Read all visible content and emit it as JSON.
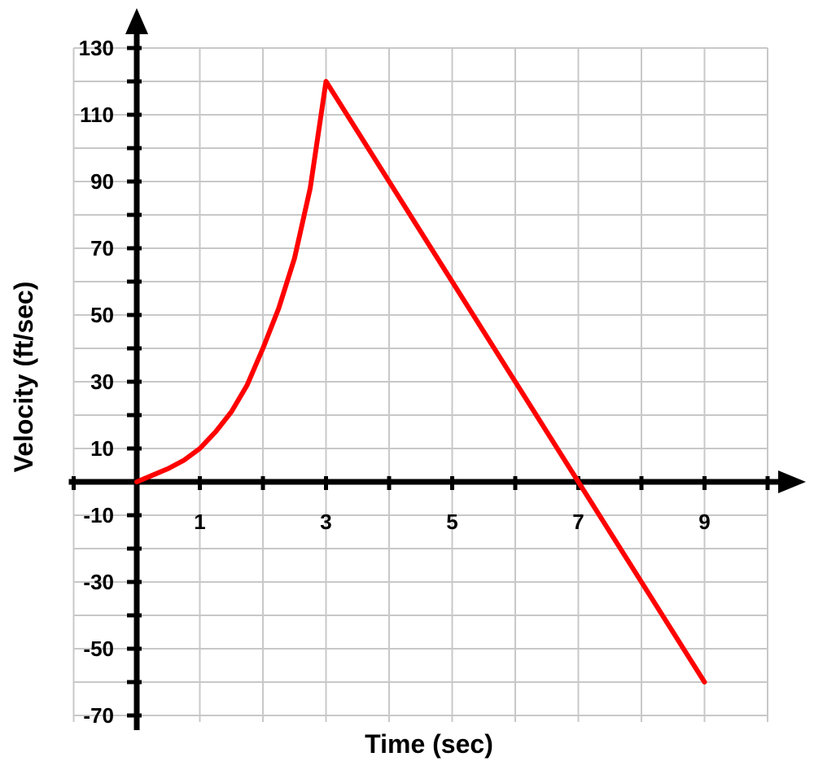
{
  "chart_data": {
    "type": "line",
    "title": "",
    "xlabel": "Time (sec)",
    "ylabel": "Velocity (ft/sec)",
    "xlim": [
      -1,
      10
    ],
    "ylim": [
      -70,
      130
    ],
    "x_ticks": [
      1,
      3,
      5,
      7,
      9
    ],
    "y_ticks": [
      130,
      110,
      90,
      70,
      50,
      30,
      10,
      -10,
      -30,
      -50,
      -70
    ],
    "grid": true,
    "grid_step_x": 1,
    "grid_step_y": 10,
    "series": [
      {
        "color": "#ff0000",
        "x": [
          0,
          0.25,
          0.5,
          0.75,
          1,
          1.25,
          1.5,
          1.75,
          2,
          2.25,
          2.5,
          2.75,
          3,
          5,
          7,
          9
        ],
        "values": [
          0,
          2,
          4,
          6.5,
          10,
          15,
          21,
          29,
          40,
          52,
          67,
          88,
          120,
          60,
          0,
          -60
        ]
      }
    ],
    "colors": {
      "line": "#ff0000",
      "grid": "#c8c8c8",
      "axis": "#000000"
    }
  }
}
